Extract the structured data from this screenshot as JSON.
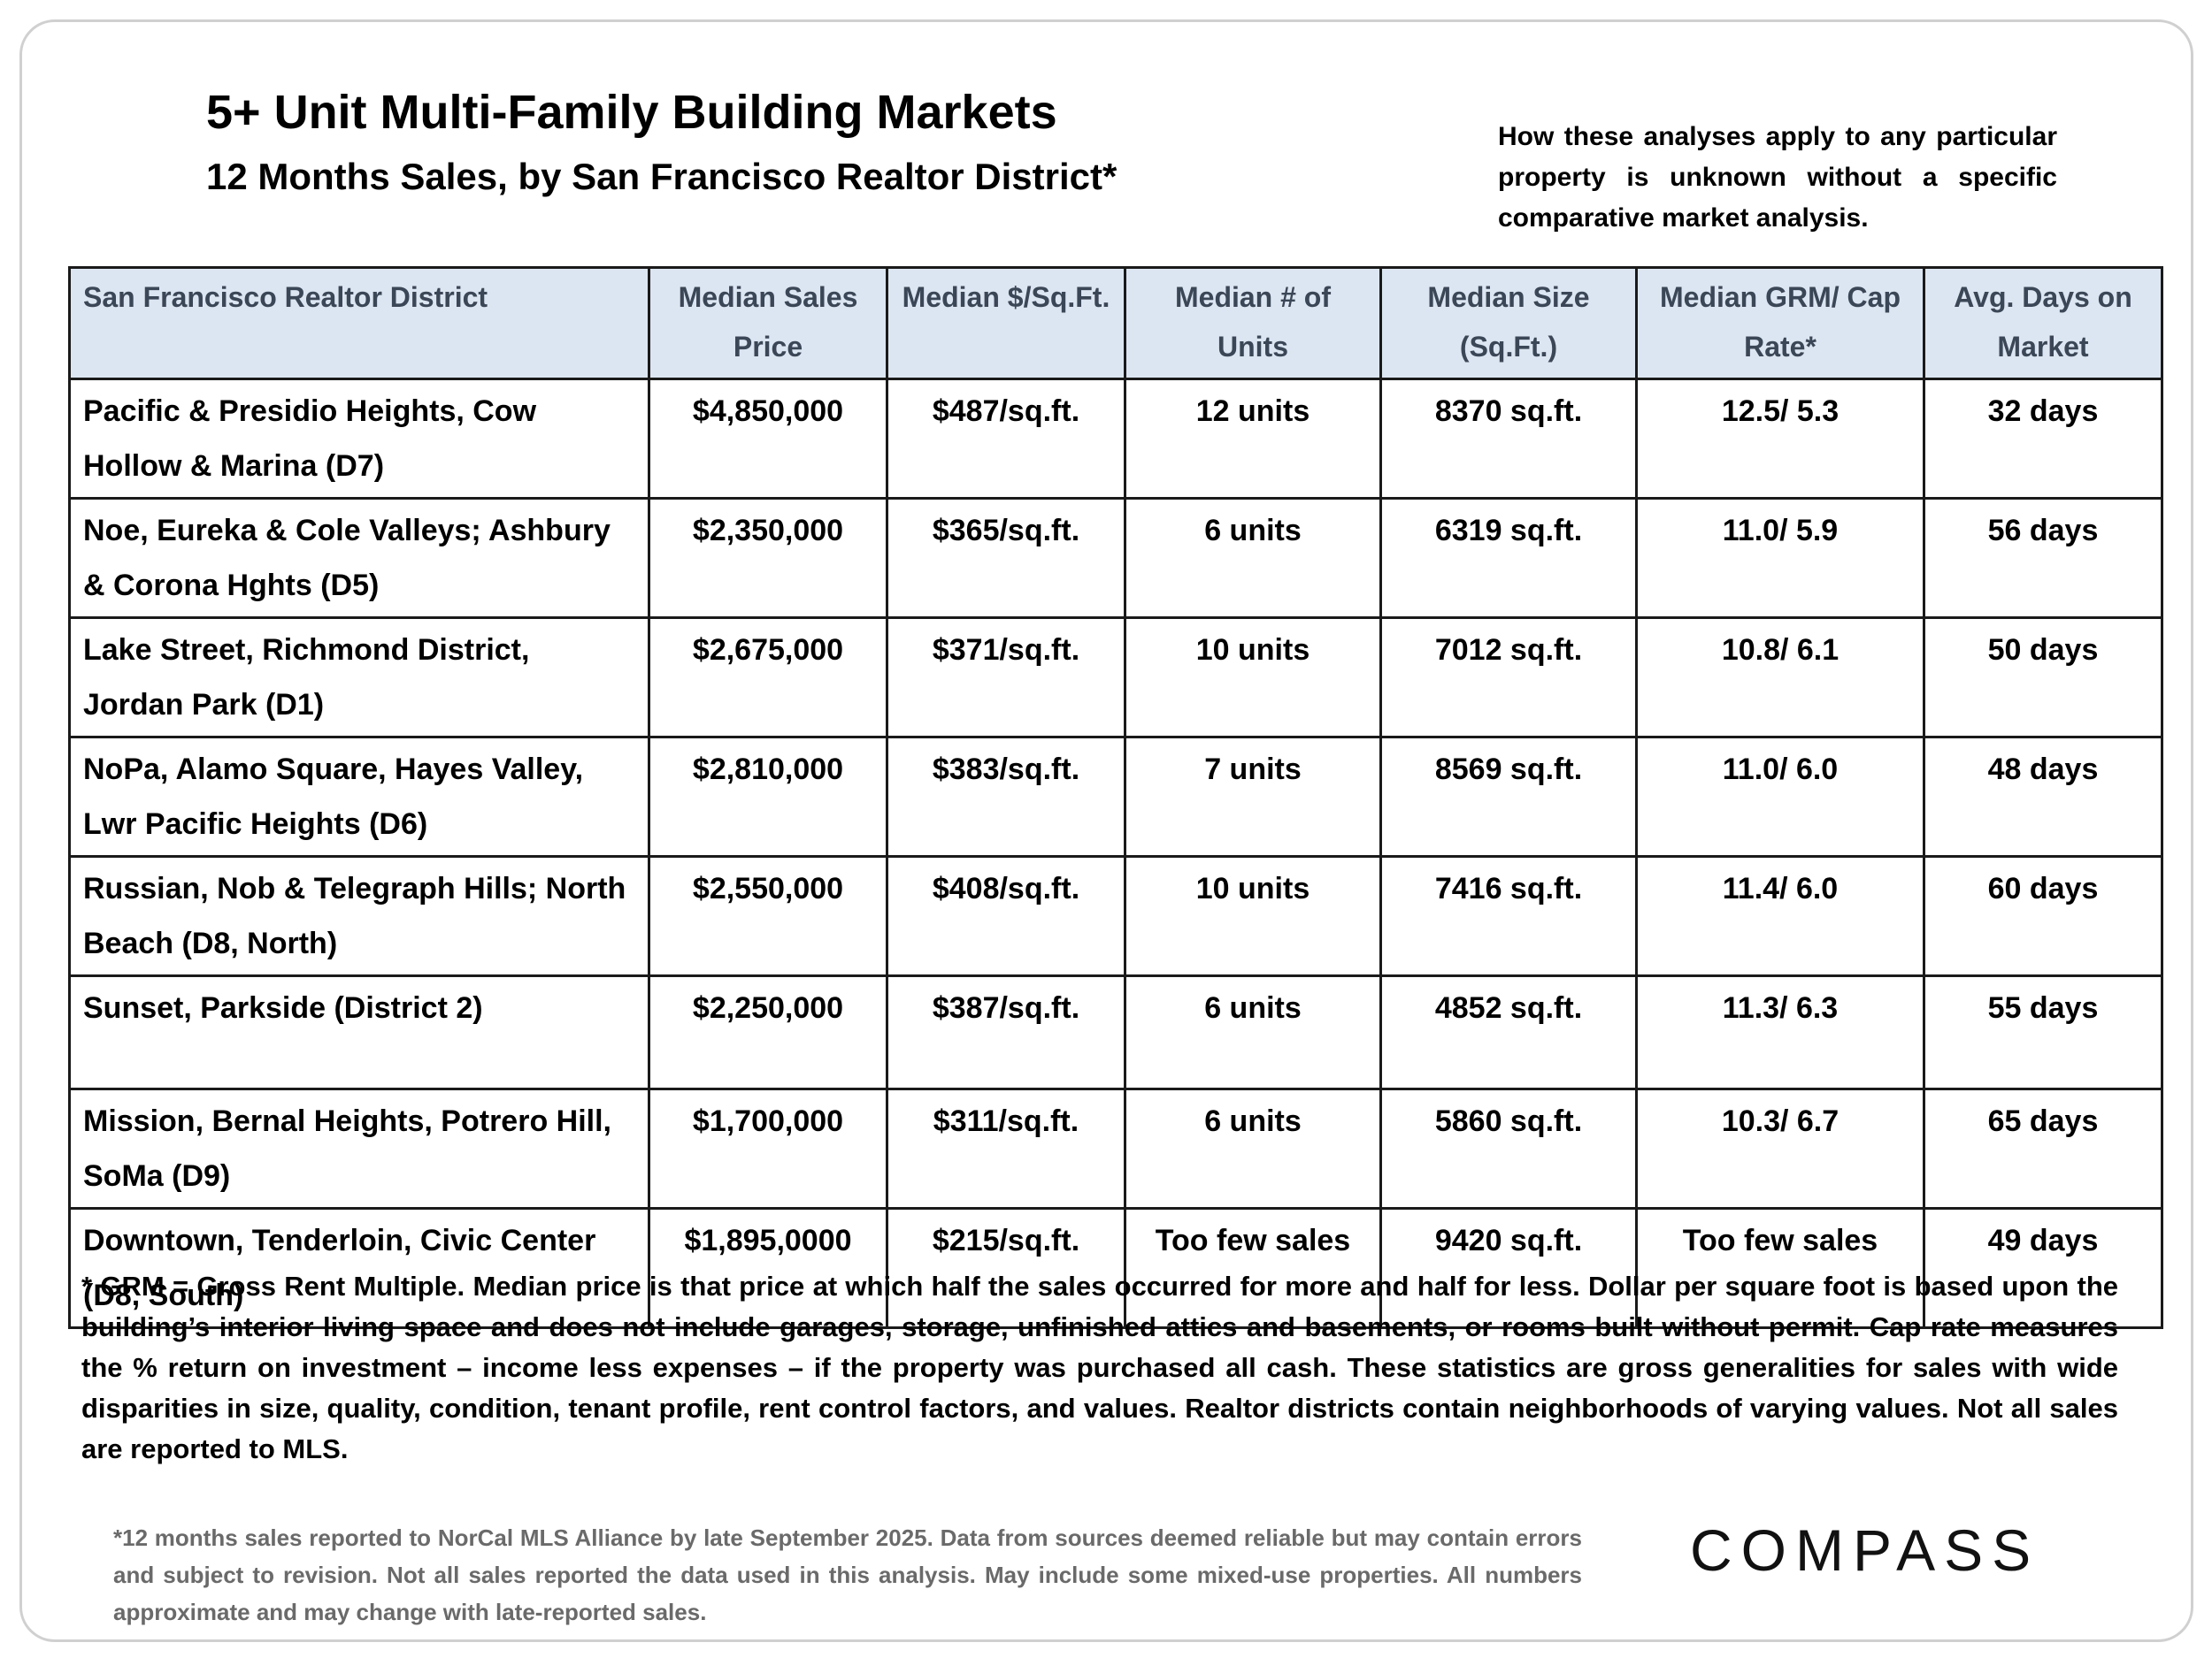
{
  "header": {
    "title": "5+ Unit Multi-Family Building Markets",
    "subtitle": "12 Months Sales, by San Francisco Realtor District*",
    "disclaimer": "How these analyses apply to any particular property is unknown without a specific comparative market analysis."
  },
  "table": {
    "header": [
      "San Francisco Realtor District",
      "Median Sales Price",
      "Median $/Sq.Ft.",
      "Median # of Units",
      "Median Size (Sq.Ft.)",
      "Median GRM/ Cap Rate*",
      "Avg. Days on Market"
    ],
    "rows": [
      [
        "Pacific & Presidio Heights, Cow Hollow & Marina (D7)",
        "$4,850,000",
        "$487/sq.ft.",
        "12 units",
        "8370 sq.ft.",
        "12.5/ 5.3",
        "32 days"
      ],
      [
        "Noe, Eureka & Cole Valleys; Ashbury & Corona Hghts (D5)",
        "$2,350,000",
        "$365/sq.ft.",
        "6 units",
        "6319 sq.ft.",
        "11.0/ 5.9",
        "56 days"
      ],
      [
        "Lake Street, Richmond District, Jordan Park (D1)",
        "$2,675,000",
        "$371/sq.ft.",
        "10 units",
        "7012 sq.ft.",
        "10.8/ 6.1",
        "50 days"
      ],
      [
        "NoPa, Alamo Square, Hayes Valley, Lwr Pacific Heights (D6)",
        "$2,810,000",
        "$383/sq.ft.",
        "7 units",
        "8569 sq.ft.",
        "11.0/ 6.0",
        "48 days"
      ],
      [
        "Russian, Nob & Telegraph Hills; North Beach (D8, North)",
        "$2,550,000",
        "$408/sq.ft.",
        "10 units",
        "7416 sq.ft.",
        "11.4/ 6.0",
        "60 days"
      ],
      [
        "Sunset, Parkside (District 2)",
        "$2,250,000",
        "$387/sq.ft.",
        "6 units",
        "4852 sq.ft.",
        "11.3/ 6.3",
        "55 days"
      ],
      [
        "Mission, Bernal Heights, Potrero Hill, SoMa (D9)",
        "$1,700,000",
        "$311/sq.ft.",
        "6 units",
        "5860 sq.ft.",
        "10.3/ 6.7",
        "65 days"
      ],
      [
        "Downtown, Tenderloin, Civic Center (D8, South)",
        "$1,895,0000",
        "$215/sq.ft.",
        "Too few sales",
        "9420 sq.ft.",
        "Too few sales",
        "49 days"
      ]
    ]
  },
  "footnote": "* GRM = Gross Rent Multiple. Median price is that price at which half the sales occurred for more and half for less. Dollar per square foot is based upon the building’s interior living space and does not include garages, storage, unfinished attics and basements, or rooms built without permit. Cap rate measures the % return on investment – income less expenses – if the property was purchased all cash. These statistics are gross generalities for sales with wide disparities in size, quality, condition, tenant profile, rent control factors, and values. Realtor districts contain neighborhoods of varying values. Not all sales are reported to MLS.",
  "source_note": "*12 months sales reported to NorCal MLS Alliance by late September 2025. Data from sources deemed reliable but may contain errors and subject to revision. Not all sales reported the  data used in this analysis. May include some mixed-use properties. All numbers approximate and may change with late-reported sales.",
  "logo": "COMPASS"
}
